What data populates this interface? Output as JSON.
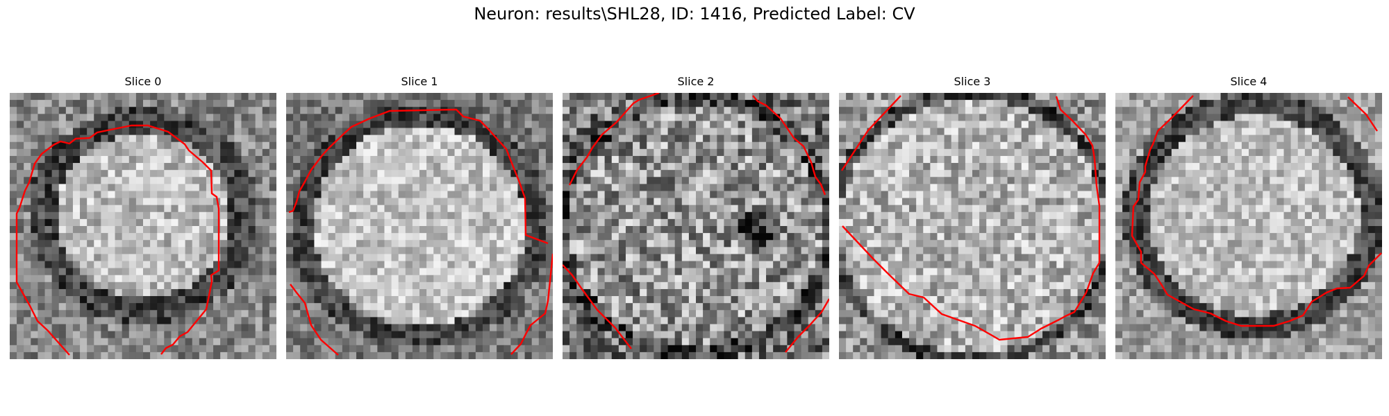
{
  "figure": {
    "title": "Neuron: results\\SHL28, ID: 1416, Predicted Label: CV"
  },
  "panels": [
    {
      "title": "Slice 0"
    },
    {
      "title": "Slice 1"
    },
    {
      "title": "Slice 2"
    },
    {
      "title": "Slice 3"
    },
    {
      "title": "Slice 4"
    }
  ],
  "colors": {
    "contour": "#ff0000",
    "background": "#ffffff",
    "image_colormap": "grayscale"
  }
}
